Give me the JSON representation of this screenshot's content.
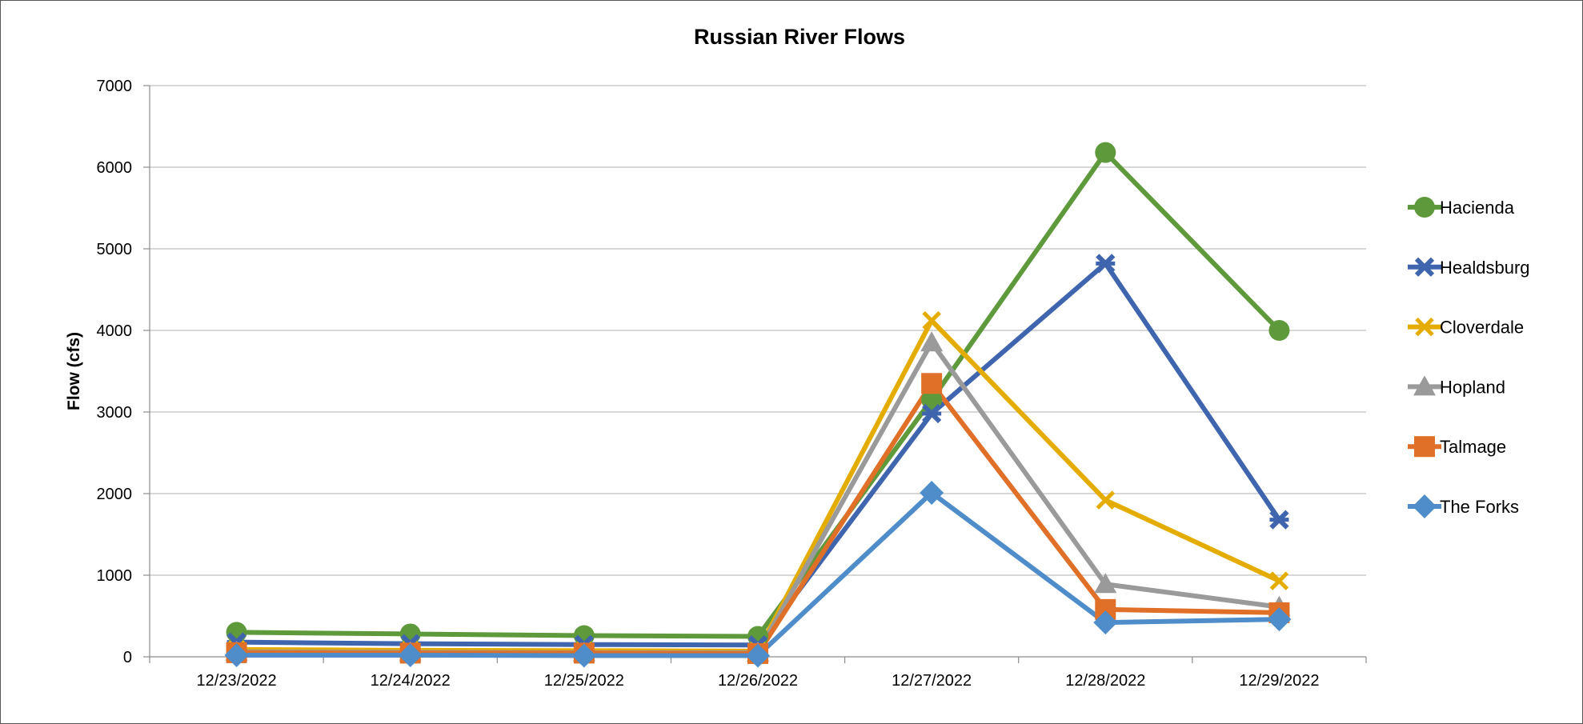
{
  "chart_data": {
    "type": "line",
    "title": "Russian River Flows",
    "xlabel": "",
    "ylabel": "Flow (cfs)",
    "ylim": [
      0,
      7000
    ],
    "yticks": [
      0,
      1000,
      2000,
      3000,
      4000,
      5000,
      6000,
      7000
    ],
    "grid": "horizontal",
    "legend_position": "right",
    "categories": [
      "12/23/2022",
      "12/24/2022",
      "12/25/2022",
      "12/26/2022",
      "12/27/2022",
      "12/28/2022",
      "12/29/2022"
    ],
    "series": [
      {
        "name": "Hacienda",
        "color": "#5e9a3b",
        "marker": "circle",
        "values": [
          300,
          280,
          260,
          250,
          3150,
          6180,
          4000
        ]
      },
      {
        "name": "Healdsburg",
        "color": "#3e65ae",
        "marker": "star",
        "values": [
          180,
          160,
          150,
          145,
          2980,
          4820,
          1680
        ]
      },
      {
        "name": "Cloverdale",
        "color": "#e5ac00",
        "marker": "x",
        "values": [
          90,
          80,
          75,
          70,
          4120,
          1920,
          930
        ]
      },
      {
        "name": "Hopland",
        "color": "#9a9a9a",
        "marker": "triangle",
        "values": [
          60,
          55,
          50,
          50,
          3850,
          890,
          610
        ]
      },
      {
        "name": "Talmage",
        "color": "#e06f28",
        "marker": "square",
        "values": [
          50,
          45,
          45,
          40,
          3350,
          580,
          540
        ]
      },
      {
        "name": "The Forks",
        "color": "#4e8dc9",
        "marker": "diamond",
        "values": [
          20,
          20,
          15,
          15,
          2010,
          420,
          460
        ]
      }
    ]
  }
}
